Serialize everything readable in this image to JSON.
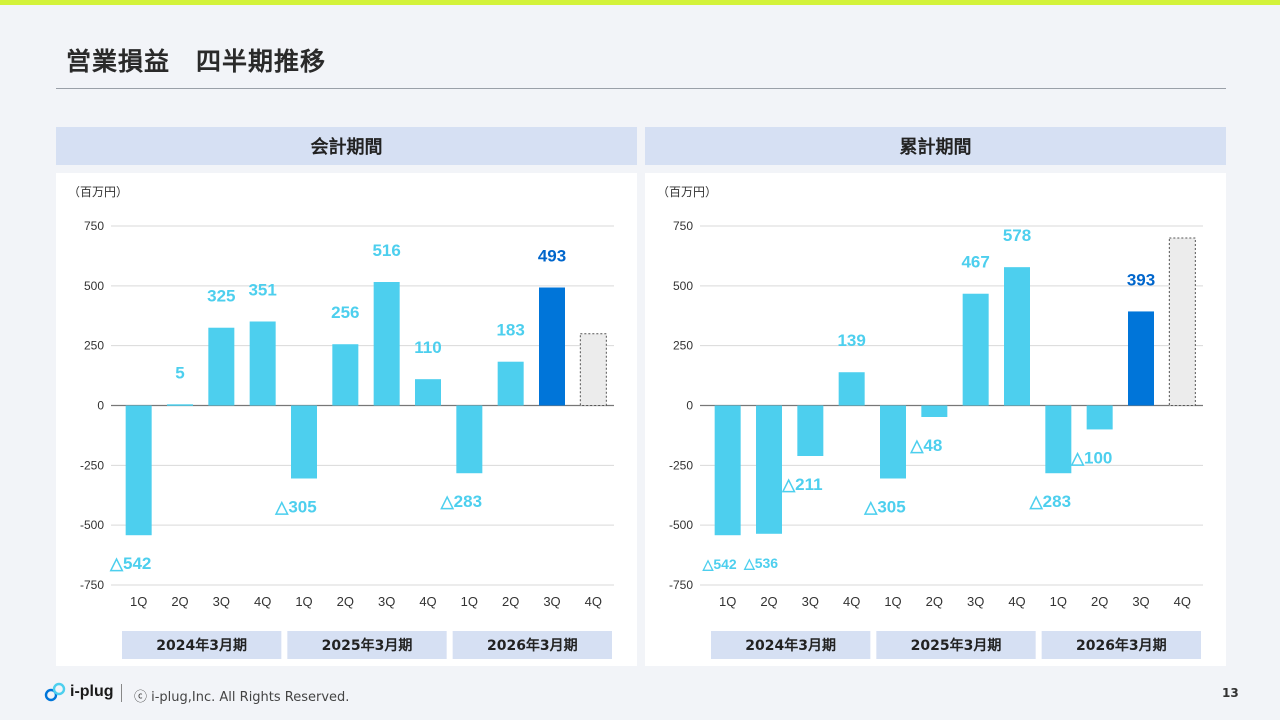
{
  "page": {
    "title": "営業損益　四半期推移",
    "page_number": "13",
    "footer": {
      "brand": "i-plug",
      "copyright": "ⓒ i-plug,Inc. All Rights Reserved."
    },
    "colors": {
      "accent_bar": "#d3f23a",
      "bar_light": "#4dcfee",
      "bar_current": "#0075d9",
      "label_light": "#4dcfee",
      "label_current": "#0066cc",
      "forecast_fill": "#ececec"
    }
  },
  "chart_data": [
    {
      "type": "bar",
      "panel_title": "会計期間",
      "unit_label": "（百万円）",
      "ylim": [
        -750,
        750
      ],
      "yticks": [
        750,
        500,
        250,
        0,
        -250,
        -500,
        -750
      ],
      "categories": [
        "1Q",
        "2Q",
        "3Q",
        "4Q",
        "1Q",
        "2Q",
        "3Q",
        "4Q",
        "1Q",
        "2Q",
        "3Q",
        "4Q"
      ],
      "groups": [
        "2024年3月期",
        "2025年3月期",
        "2026年3月期"
      ],
      "values": [
        -542,
        5,
        325,
        351,
        -305,
        256,
        516,
        110,
        -283,
        183,
        493,
        300
      ],
      "data_labels": [
        "△542",
        "5",
        "325",
        "351",
        "△305",
        "256",
        "516",
        "110",
        "△283",
        "183",
        "493",
        ""
      ],
      "highlight_index": 10,
      "forecast_index": 11
    },
    {
      "type": "bar",
      "panel_title": "累計期間",
      "unit_label": "（百万円）",
      "ylim": [
        -750,
        750
      ],
      "yticks": [
        750,
        500,
        250,
        0,
        -250,
        -500,
        -750
      ],
      "categories": [
        "1Q",
        "2Q",
        "3Q",
        "4Q",
        "1Q",
        "2Q",
        "3Q",
        "4Q",
        "1Q",
        "2Q",
        "3Q",
        "4Q"
      ],
      "groups": [
        "2024年3月期",
        "2025年3月期",
        "2026年3月期"
      ],
      "values": [
        -542,
        -536,
        -211,
        139,
        -305,
        -48,
        467,
        578,
        -283,
        -100,
        393,
        700
      ],
      "data_labels": [
        "△542",
        "△536",
        "△211",
        "139",
        "△305",
        "△48",
        "467",
        "578",
        "△283",
        "△100",
        "393",
        ""
      ],
      "highlight_index": 10,
      "forecast_index": 11
    }
  ]
}
